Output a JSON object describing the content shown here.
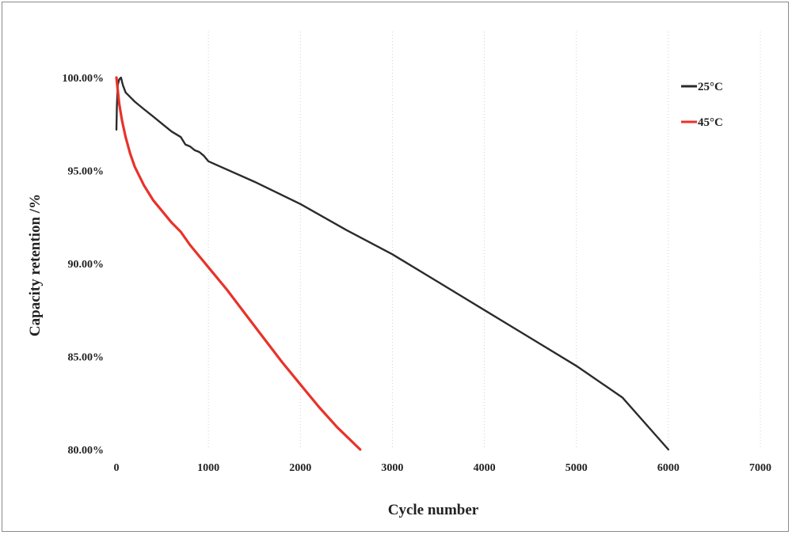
{
  "chart_data": {
    "type": "line",
    "title": "",
    "xlabel": "Cycle number",
    "ylabel": "Capacity retention /%",
    "xlim": [
      0,
      7000
    ],
    "ylim": [
      80,
      100
    ],
    "x_ticks": [
      "0",
      "1000",
      "2000",
      "3000",
      "4000",
      "5000",
      "6000",
      "7000"
    ],
    "y_ticks": [
      "80.00%",
      "85.00%",
      "90.00%",
      "95.00%",
      "100.00%"
    ],
    "grid": "vertical-dotted",
    "legend_position": "top-right",
    "series": [
      {
        "name": "25°C",
        "color": "#2b2b2b",
        "points": [
          [
            0,
            97.2
          ],
          [
            5,
            98.5
          ],
          [
            15,
            99.6
          ],
          [
            30,
            99.9
          ],
          [
            50,
            100.0
          ],
          [
            70,
            99.6
          ],
          [
            100,
            99.2
          ],
          [
            200,
            98.7
          ],
          [
            300,
            98.3
          ],
          [
            400,
            97.9
          ],
          [
            500,
            97.5
          ],
          [
            600,
            97.1
          ],
          [
            700,
            96.8
          ],
          [
            750,
            96.4
          ],
          [
            800,
            96.3
          ],
          [
            850,
            96.1
          ],
          [
            900,
            96.0
          ],
          [
            950,
            95.8
          ],
          [
            1000,
            95.5
          ],
          [
            1500,
            94.4
          ],
          [
            2000,
            93.2
          ],
          [
            2500,
            91.8
          ],
          [
            3000,
            90.5
          ],
          [
            3500,
            89.0
          ],
          [
            4000,
            87.5
          ],
          [
            4500,
            86.0
          ],
          [
            5000,
            84.5
          ],
          [
            5500,
            82.8
          ],
          [
            6000,
            80.0
          ]
        ]
      },
      {
        "name": "45°C",
        "color": "#e8322a",
        "points": [
          [
            0,
            100.0
          ],
          [
            30,
            98.6
          ],
          [
            60,
            97.7
          ],
          [
            100,
            96.8
          ],
          [
            150,
            95.9
          ],
          [
            200,
            95.2
          ],
          [
            300,
            94.2
          ],
          [
            400,
            93.4
          ],
          [
            500,
            92.8
          ],
          [
            600,
            92.2
          ],
          [
            700,
            91.7
          ],
          [
            800,
            91.0
          ],
          [
            1000,
            89.8
          ],
          [
            1200,
            88.6
          ],
          [
            1400,
            87.3
          ],
          [
            1600,
            86.0
          ],
          [
            1800,
            84.7
          ],
          [
            2000,
            83.5
          ],
          [
            2200,
            82.3
          ],
          [
            2400,
            81.2
          ],
          [
            2650,
            80.0
          ]
        ]
      }
    ]
  }
}
